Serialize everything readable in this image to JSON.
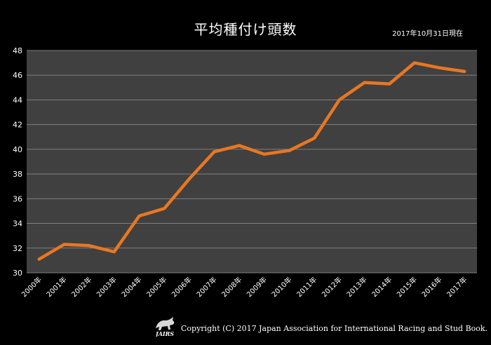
{
  "header": {
    "title": "平均種付け頭数",
    "date_note": "2017年10月31日現在"
  },
  "footer": {
    "logo_text": "JAIRS",
    "copyright": "Copyright (C) 2017 Japan Association for International Racing and Stud Book."
  },
  "colors": {
    "background": "#000000",
    "plot_area": "#404040",
    "gridline": "#7f7f7f",
    "line": "#e87722"
  },
  "chart_data": {
    "type": "line",
    "title": "平均種付け頭数",
    "categories": [
      "2000年",
      "2001年",
      "2002年",
      "2003年",
      "2004年",
      "2005年",
      "2006年",
      "2007年",
      "2008年",
      "2009年",
      "2010年",
      "2011年",
      "2012年",
      "2013年",
      "2014年",
      "2015年",
      "2016年",
      "2017年"
    ],
    "series": [
      {
        "values": [
          31.1,
          32.3,
          32.2,
          31.7,
          34.6,
          35.2,
          37.6,
          39.8,
          40.3,
          39.6,
          39.9,
          40.9,
          44.0,
          45.4,
          45.3,
          47.0,
          46.6,
          46.3
        ]
      }
    ],
    "ylim": [
      30,
      48
    ],
    "yticks": [
      30,
      32,
      34,
      36,
      38,
      40,
      42,
      44,
      46,
      48
    ],
    "grid": true,
    "legend": "none"
  }
}
